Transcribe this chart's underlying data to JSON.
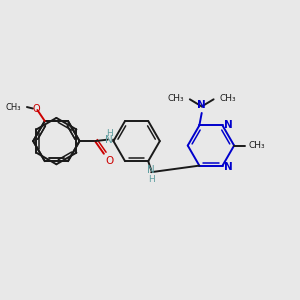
{
  "background_color": "#e8e8e8",
  "bond_color": "#1a1a1a",
  "nitrogen_color": "#0000cc",
  "oxygen_color": "#cc0000",
  "nh_color": "#5f9ea0",
  "carbon_color": "#1a1a1a",
  "figsize": [
    3.0,
    3.0
  ],
  "dpi": 100,
  "xlim": [
    0,
    10
  ],
  "ylim": [
    0,
    10
  ]
}
